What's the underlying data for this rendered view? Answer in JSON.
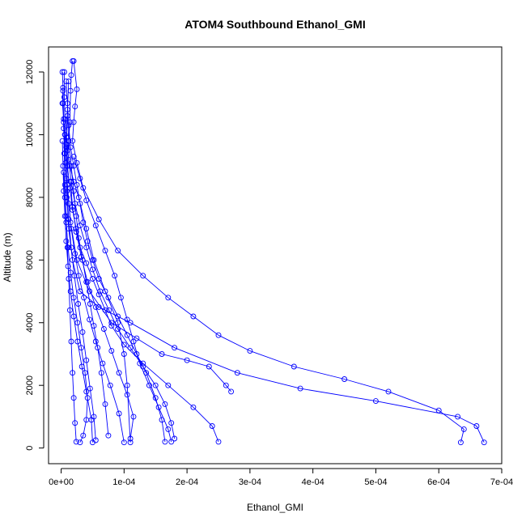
{
  "chart_data": {
    "type": "line",
    "title": "ATOM4 Southbound Ethanol_GMI",
    "xlabel": "Ethanol_GMI",
    "ylabel": "Altitude (m)",
    "xlim": [
      -2e-05,
      0.0007
    ],
    "ylim": [
      -500,
      12800
    ],
    "x_ticks": [
      0,
      0.0001,
      0.0002,
      0.0003,
      0.0004,
      0.0005,
      0.0006,
      0.0007
    ],
    "x_tick_labels": [
      "0e+00",
      "1e-04",
      "2e-04",
      "3e-04",
      "4e-04",
      "5e-04",
      "6e-04",
      "7e-04"
    ],
    "y_ticks": [
      0,
      2000,
      4000,
      6000,
      8000,
      10000,
      12000
    ],
    "y_tick_labels": [
      "0",
      "2000",
      "4000",
      "6000",
      "8000",
      "10000",
      "12000"
    ],
    "grid": false,
    "series_color": "#0000ff",
    "marker": "open-circle",
    "series": [
      {
        "x": [
          2e-06,
          3e-06,
          2e-06,
          4e-06,
          6e-06,
          1e-05,
          1.4e-05,
          2e-05,
          2.8e-05,
          4e-05,
          5.2e-05,
          7e-05,
          9e-05,
          0.0001,
          0.000105,
          0.00011
        ],
        "y": [
          12000,
          11500,
          11000,
          10500,
          10000,
          9500,
          9000,
          8500,
          8000,
          7000,
          6000,
          5000,
          4000,
          3000,
          2000,
          180
        ]
      },
      {
        "x": [
          1.8e-05,
          1.6e-05,
          1.5e-05,
          1.4e-05,
          1.2e-05,
          1e-05,
          9e-06,
          1.2e-05,
          1.8e-05,
          3e-05,
          6e-05,
          0.00011,
          0.00018,
          0.00028,
          0.00038,
          0.0005,
          0.00063,
          0.00066,
          0.000672
        ],
        "y": [
          12350,
          11900,
          11400,
          10400,
          9800,
          9000,
          8000,
          7000,
          6000,
          5000,
          4500,
          4000,
          3200,
          2400,
          1900,
          1500,
          1000,
          700,
          180
        ]
      },
      {
        "x": [
          2e-05,
          2.5e-05,
          2.2e-05,
          2e-05,
          1.8e-05,
          2.5e-05,
          3.5e-05,
          6e-05,
          9e-05,
          0.00013,
          0.00017,
          0.00021,
          0.00025,
          0.0003,
          0.00037,
          0.00045,
          0.00052,
          0.0006,
          0.00064,
          0.000635
        ],
        "y": [
          12350,
          11450,
          10900,
          10400,
          9800,
          9100,
          8300,
          7300,
          6300,
          5500,
          4800,
          4200,
          3600,
          3100,
          2600,
          2200,
          1800,
          1200,
          600,
          180
        ]
      },
      {
        "x": [
          1.2e-05,
          1e-05,
          8e-06,
          1e-05,
          1.5e-05,
          2.5e-05,
          4.5e-05,
          8e-05,
          0.00012,
          0.00016,
          0.0002,
          0.000235,
          0.000262,
          0.00027
        ],
        "y": [
          11700,
          10800,
          9600,
          8400,
          7200,
          6000,
          5000,
          4000,
          3500,
          3000,
          2800,
          2600,
          2000,
          1800
        ]
      },
      {
        "x": [
          5e-06,
          5e-06,
          6e-06,
          8e-06,
          1e-05,
          1.4e-05,
          1.8e-05,
          2.4e-05,
          3e-05,
          4e-05,
          5e-05,
          6e-05,
          7e-05,
          8e-05,
          0.0001,
          0.00013,
          0.00017,
          0.00021,
          0.00024,
          0.00025
        ],
        "y": [
          12000,
          11200,
          10500,
          9700,
          9000,
          8300,
          7600,
          7000,
          6400,
          5900,
          5400,
          4900,
          4400,
          3900,
          3300,
          2700,
          2000,
          1300,
          700,
          200
        ]
      },
      {
        "x": [
          8e-06,
          1e-05,
          1.2e-05,
          1.5e-05,
          2e-05,
          2.5e-05,
          3e-05,
          3.5e-05,
          4.2e-05,
          5e-05,
          6e-05,
          7.5e-05,
          9e-05,
          0.000105,
          0.00012,
          0.000135,
          0.00015,
          0.00016,
          0.000165
        ],
        "y": [
          11700,
          11000,
          10300,
          9600,
          9000,
          8400,
          7800,
          7200,
          6600,
          6000,
          5400,
          4800,
          4200,
          3600,
          3000,
          2400,
          1600,
          900,
          200
        ]
      },
      {
        "x": [
          3e-06,
          4e-06,
          6e-06,
          8e-06,
          1.2e-05,
          1.6e-05,
          2.2e-05,
          2.8e-05,
          3.6e-05,
          4.5e-05,
          5.5e-05,
          6.6e-05,
          7.8e-05,
          9.2e-05,
          0.0001
        ],
        "y": [
          11000,
          10200,
          9400,
          8600,
          7800,
          7000,
          6200,
          5500,
          4800,
          4100,
          3400,
          2700,
          2000,
          1100,
          180
        ]
      },
      {
        "x": [
          1e-05,
          1.2e-05,
          1.6e-05,
          2e-05,
          2.4e-05,
          2.8e-05,
          3.4e-05,
          4e-05,
          4.6e-05,
          5.2e-05,
          5.8e-05,
          6.4e-05,
          7e-05,
          7.5e-05
        ],
        "y": [
          10600,
          9800,
          9000,
          8200,
          7400,
          6700,
          6000,
          5300,
          4600,
          3900,
          3200,
          2400,
          1400,
          400
        ]
      },
      {
        "x": [
          2e-06,
          3e-06,
          4e-06,
          6e-06,
          8e-06,
          1.1e-05,
          1.5e-05,
          2e-05,
          2.6e-05,
          3.3e-05,
          4e-05,
          4.8e-05,
          5e-05
        ],
        "y": [
          9800,
          9000,
          8200,
          7400,
          6600,
          5800,
          5000,
          4200,
          3400,
          2600,
          1800,
          900,
          180
        ]
      },
      {
        "x": [
          2e-05,
          3e-05,
          4e-05,
          5.5e-05,
          7e-05,
          8.5e-05,
          9.5e-05,
          0.000105,
          0.000115,
          0.000125,
          0.00014,
          0.000155,
          0.00017,
          0.000175
        ],
        "y": [
          9300,
          8600,
          7900,
          7100,
          6300,
          5500,
          4800,
          4100,
          3400,
          2700,
          2000,
          1300,
          600,
          200
        ]
      },
      {
        "x": [
          4e-06,
          6e-06,
          8e-06,
          1.1e-05,
          1.5e-05,
          2e-05,
          2.6e-05,
          3.2e-05,
          3.8e-05,
          4.2e-05,
          4e-05,
          3.5e-05,
          3e-05
        ],
        "y": [
          8800,
          8000,
          7200,
          6400,
          5600,
          4800,
          4000,
          3200,
          2400,
          1600,
          900,
          400,
          180
        ]
      },
      {
        "x": [
          1.5e-05,
          1.8e-05,
          2.4e-05,
          3.2e-05,
          4.2e-05,
          5.5e-05,
          6.8e-05,
          8e-05,
          9.2e-05,
          0.000105,
          0.000115,
          0.00011
        ],
        "y": [
          8500,
          7700,
          6900,
          6100,
          5300,
          4500,
          3800,
          3100,
          2400,
          1700,
          1000,
          300
        ]
      },
      {
        "x": [
          6e-06,
          7e-06,
          9e-06,
          1.2e-05,
          1.6e-05,
          2.1e-05,
          2.7e-05,
          3.4e-05,
          4e-05,
          4.6e-05,
          5.2e-05,
          5.5e-05
        ],
        "y": [
          10000,
          9100,
          8200,
          7300,
          6400,
          5500,
          4600,
          3700,
          2800,
          1900,
          1000,
          250
        ]
      },
      {
        "x": [
          3e-06,
          4e-06,
          5e-06,
          6e-06,
          8e-06,
          1e-05,
          1.2e-05,
          1.4e-05,
          1.6e-05,
          1.8e-05,
          2e-05,
          2.2e-05,
          2.4e-05
        ],
        "y": [
          11400,
          10400,
          9400,
          8400,
          7400,
          6400,
          5400,
          4400,
          3400,
          2400,
          1600,
          800,
          200
        ]
      },
      {
        "x": [
          9e-06,
          1.2e-05,
          1.6e-05,
          2.2e-05,
          3e-05,
          4e-05,
          5e-05,
          6.2e-05,
          7.6e-05,
          9e-05,
          0.00011,
          0.00013,
          0.00015,
          0.000165,
          0.000175,
          0.00018
        ],
        "y": [
          9900,
          9200,
          8500,
          7800,
          7100,
          6400,
          5700,
          5000,
          4400,
          3800,
          3200,
          2600,
          2000,
          1400,
          800,
          300
        ]
      }
    ]
  }
}
